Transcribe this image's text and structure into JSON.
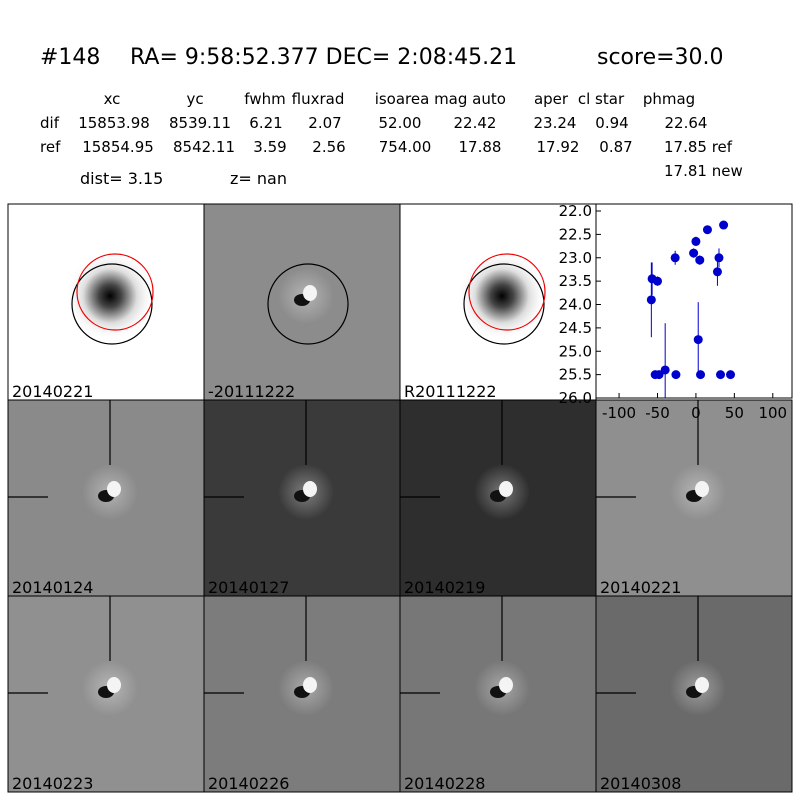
{
  "header": {
    "id": "#148",
    "coords": "RA= 9:58:52.377 DEC= 2:08:45.21",
    "score": "score=30.0"
  },
  "table": {
    "columns": [
      "xc",
      "yc",
      "fwhm",
      "fluxrad",
      "isoarea",
      "mag auto",
      "aper",
      "cl star",
      "phmag"
    ],
    "rows": [
      [
        "dif",
        "15853.98",
        "8539.11",
        "6.21",
        "2.07",
        "52.00",
        "22.42",
        "23.24",
        "0.94",
        "22.64"
      ],
      [
        "ref",
        "15854.95",
        "8542.11",
        "3.59",
        "2.56",
        "754.00",
        "17.88",
        "17.92",
        "0.87",
        "17.85 ref"
      ]
    ],
    "extra": "17.81 new"
  },
  "info": {
    "dist": "dist=  3.15",
    "z": "z=   nan"
  },
  "panels": [
    "20140221",
    "-20111222",
    "R20111222",
    "20140124",
    "20140127",
    "20140219",
    "20140221",
    "20140223",
    "20140226",
    "20140228",
    "20140308"
  ],
  "chart_data": {
    "type": "scatter",
    "color": "#0000cc",
    "x": [
      -58,
      -57,
      -50,
      -53,
      -48,
      -40,
      -26,
      -27,
      -3,
      0,
      5,
      3,
      6,
      15,
      30,
      28,
      32,
      36,
      45
    ],
    "values": [
      23.9,
      23.45,
      23.5,
      25.5,
      25.5,
      25.4,
      25.5,
      23.0,
      22.9,
      22.65,
      23.05,
      24.75,
      25.5,
      22.4,
      23.0,
      23.3,
      25.5,
      22.3,
      25.5
    ],
    "errors": [
      0.8,
      0.35,
      0.1,
      0.05,
      0.05,
      1.0,
      0.05,
      0.15,
      0.1,
      0.1,
      0.1,
      0.8,
      0.05,
      0.08,
      0.2,
      0.3,
      0.05,
      0.08,
      0.05
    ],
    "xlim": [
      -130,
      125
    ],
    "ylim": [
      21.85,
      26.0
    ],
    "y_inverted": true,
    "xticks": [
      -100,
      -50,
      0,
      50,
      100
    ],
    "yticks": [
      {
        "value": 22,
        "label": "22.0"
      },
      {
        "value": 22.5,
        "label": "22.5"
      },
      {
        "value": 23,
        "label": "23.0"
      },
      {
        "value": 23.5,
        "label": "23.5"
      },
      {
        "value": 24,
        "label": "24.0"
      },
      {
        "value": 24.5,
        "label": "24.5"
      },
      {
        "value": 25,
        "label": "25.0"
      },
      {
        "value": 25.5,
        "label": "25.5"
      },
      {
        "value": 26,
        "label": "26.0"
      }
    ]
  }
}
